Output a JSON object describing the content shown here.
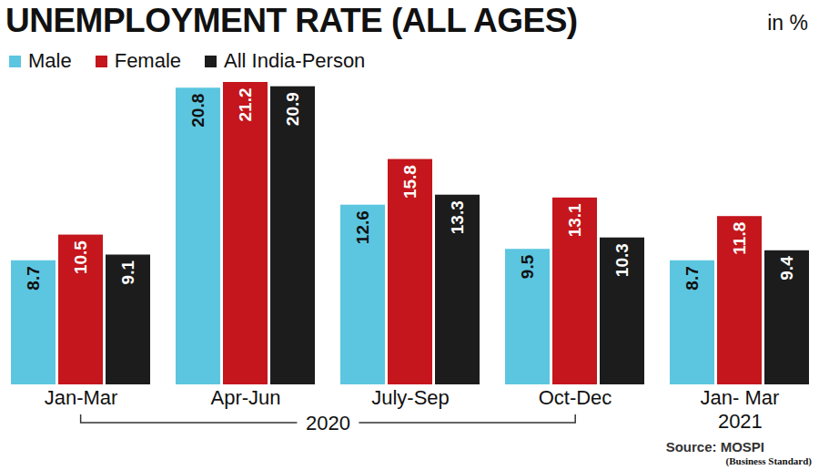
{
  "chart_data": {
    "type": "bar",
    "title": "UNEMPLOYMENT RATE (ALL AGES)",
    "subtitle": "in %",
    "categories": [
      "Jan-Mar",
      "Apr-Jun",
      "July-Sep",
      "Oct-Dec",
      "Jan- Mar"
    ],
    "series": [
      {
        "name": "Male",
        "color": "#5cc6e0",
        "values": [
          8.7,
          20.8,
          12.6,
          9.5,
          8.7
        ]
      },
      {
        "name": "Female",
        "color": "#c4161c",
        "values": [
          10.5,
          21.2,
          15.8,
          13.1,
          11.8
        ]
      },
      {
        "name": "All India-Person",
        "color": "#1c1c1c",
        "values": [
          9.1,
          20.9,
          13.3,
          10.3,
          9.4
        ]
      }
    ],
    "annotations": [
      {
        "text": "2020",
        "from": "Jan-Mar",
        "to": "Oct-Dec"
      },
      {
        "text": "2021",
        "from": "Jan- Mar",
        "to": "Jan- Mar"
      }
    ],
    "source": "Source: MOSPI",
    "credit": "(Business Standard)",
    "ylim": [
      0,
      21.2
    ],
    "yticks": [],
    "grid": false,
    "legend": "top-left",
    "data_labels": true,
    "tick_labels": "x"
  }
}
